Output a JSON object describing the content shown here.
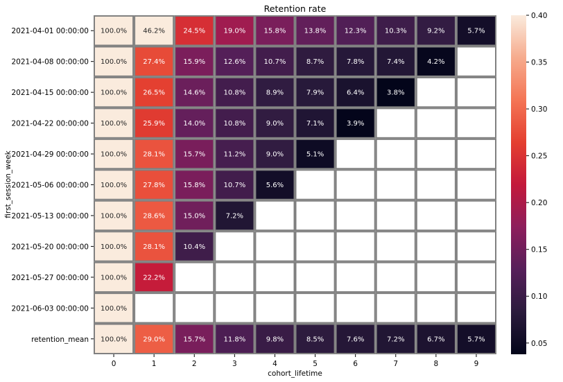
{
  "chart_data": {
    "type": "heatmap",
    "title": "Retention rate",
    "xlabel": "cohort_lifetime",
    "ylabel": "first_session_week",
    "x_categories": [
      "0",
      "1",
      "2",
      "3",
      "4",
      "5",
      "6",
      "7",
      "8",
      "9"
    ],
    "y_categories": [
      "2021-04-01 00:00:00",
      "2021-04-08 00:00:00",
      "2021-04-15 00:00:00",
      "2021-04-22 00:00:00",
      "2021-04-29 00:00:00",
      "2021-05-06 00:00:00",
      "2021-05-13 00:00:00",
      "2021-05-20 00:00:00",
      "2021-05-27 00:00:00",
      "2021-06-03 00:00:00",
      "retention_mean"
    ],
    "values": [
      [
        1.0,
        0.462,
        0.245,
        0.19,
        0.158,
        0.138,
        0.123,
        0.103,
        0.092,
        0.057
      ],
      [
        1.0,
        0.274,
        0.159,
        0.126,
        0.107,
        0.087,
        0.078,
        0.074,
        0.042,
        null
      ],
      [
        1.0,
        0.265,
        0.146,
        0.108,
        0.089,
        0.079,
        0.064,
        0.038,
        null,
        null
      ],
      [
        1.0,
        0.259,
        0.14,
        0.108,
        0.09,
        0.071,
        0.039,
        null,
        null,
        null
      ],
      [
        1.0,
        0.281,
        0.157,
        0.112,
        0.09,
        0.051,
        null,
        null,
        null,
        null
      ],
      [
        1.0,
        0.278,
        0.158,
        0.107,
        0.056,
        null,
        null,
        null,
        null,
        null
      ],
      [
        1.0,
        0.286,
        0.15,
        0.072,
        null,
        null,
        null,
        null,
        null,
        null
      ],
      [
        1.0,
        0.281,
        0.104,
        null,
        null,
        null,
        null,
        null,
        null,
        null
      ],
      [
        1.0,
        0.222,
        null,
        null,
        null,
        null,
        null,
        null,
        null,
        null
      ],
      [
        1.0,
        null,
        null,
        null,
        null,
        null,
        null,
        null,
        null,
        null
      ],
      [
        1.0,
        0.29,
        0.157,
        0.118,
        0.098,
        0.085,
        0.076,
        0.072,
        0.067,
        0.057
      ]
    ],
    "labels": [
      [
        "100.0%",
        "46.2%",
        "24.5%",
        "19.0%",
        "15.8%",
        "13.8%",
        "12.3%",
        "10.3%",
        "9.2%",
        "5.7%"
      ],
      [
        "100.0%",
        "27.4%",
        "15.9%",
        "12.6%",
        "10.7%",
        "8.7%",
        "7.8%",
        "7.4%",
        "4.2%",
        ""
      ],
      [
        "100.0%",
        "26.5%",
        "14.6%",
        "10.8%",
        "8.9%",
        "7.9%",
        "6.4%",
        "3.8%",
        "",
        ""
      ],
      [
        "100.0%",
        "25.9%",
        "14.0%",
        "10.8%",
        "9.0%",
        "7.1%",
        "3.9%",
        "",
        "",
        ""
      ],
      [
        "100.0%",
        "28.1%",
        "15.7%",
        "11.2%",
        "9.0%",
        "5.1%",
        "",
        "",
        "",
        ""
      ],
      [
        "100.0%",
        "27.8%",
        "15.8%",
        "10.7%",
        "5.6%",
        "",
        "",
        "",
        "",
        ""
      ],
      [
        "100.0%",
        "28.6%",
        "15.0%",
        "7.2%",
        "",
        "",
        "",
        "",
        "",
        ""
      ],
      [
        "100.0%",
        "28.1%",
        "10.4%",
        "",
        "",
        "",
        "",
        "",
        "",
        ""
      ],
      [
        "100.0%",
        "22.2%",
        "",
        "",
        "",
        "",
        "",
        "",
        "",
        ""
      ],
      [
        "100.0%",
        "",
        "",
        "",
        "",
        "",
        "",
        "",
        "",
        ""
      ],
      [
        "100.0%",
        "29.0%",
        "15.7%",
        "11.8%",
        "9.8%",
        "8.5%",
        "7.6%",
        "7.2%",
        "6.7%",
        "5.7%"
      ]
    ],
    "colormap": "rocket",
    "vmin": 0.038,
    "vmax": 0.4,
    "colorbar_ticks": [
      0.05,
      0.1,
      0.15,
      0.2,
      0.25,
      0.3,
      0.35,
      0.4
    ],
    "colorbar_tick_labels": [
      "0.05",
      "0.10",
      "0.15",
      "0.20",
      "0.25",
      "0.30",
      "0.35",
      "0.40"
    ],
    "cell_border_color": "#808080"
  }
}
